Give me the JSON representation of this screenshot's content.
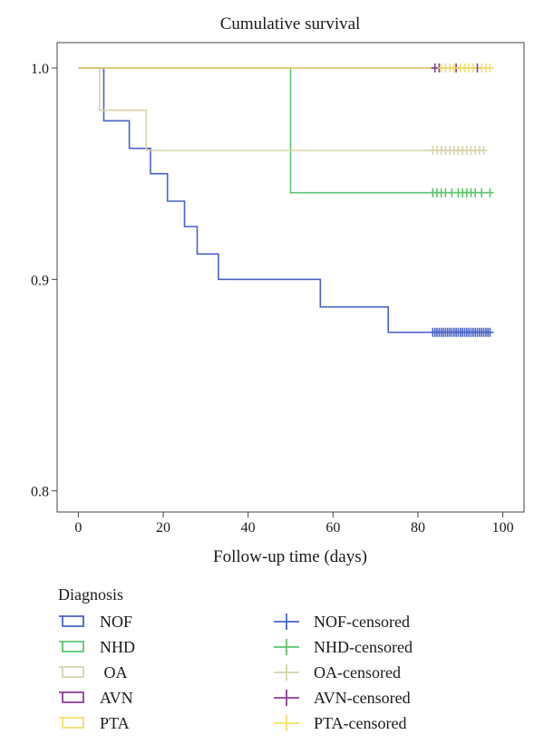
{
  "chart_data": {
    "type": "line",
    "title": "Cumulative survival",
    "xlabel": "Follow-up time (days)",
    "ylabel": "",
    "xlim": [
      -5,
      105
    ],
    "ylim": [
      0.79,
      1.012
    ],
    "x_ticks": [
      0,
      20,
      40,
      60,
      80,
      100
    ],
    "y_ticks": [
      0.8,
      0.9,
      1.0
    ],
    "y_tick_labels": [
      "0.8",
      "0.9",
      "1.0"
    ],
    "legend_title": "Diagnosis",
    "legend_placement": "bottom",
    "series": [
      {
        "name": "NOF",
        "color": "#4a62c8",
        "steps": [
          [
            0,
            1.0
          ],
          [
            6,
            0.975
          ],
          [
            12,
            0.962
          ],
          [
            17,
            0.95
          ],
          [
            21,
            0.937
          ],
          [
            25,
            0.925
          ],
          [
            28,
            0.912
          ],
          [
            33,
            0.9
          ],
          [
            57,
            0.887
          ],
          [
            73,
            0.875
          ],
          [
            97,
            0.875
          ]
        ],
        "censored_name": "NOF-censored",
        "censored": [
          83.5,
          84,
          84.5,
          85,
          85.5,
          86,
          86.5,
          87,
          87.5,
          88,
          88.5,
          89,
          89.5,
          90,
          90.5,
          91,
          91.5,
          92,
          92.5,
          93,
          93.5,
          94,
          94.5,
          95,
          95.5,
          96,
          96.5,
          97
        ]
      },
      {
        "name": "NHD",
        "color": "#5cc46e",
        "steps": [
          [
            0,
            1.0
          ],
          [
            50,
            0.941
          ],
          [
            97,
            0.941
          ]
        ],
        "censored_name": "NHD-censored",
        "censored": [
          83.5,
          84.5,
          85.5,
          86.5,
          88,
          89.5,
          90.5,
          91.5,
          92.5,
          93.5,
          95,
          97
        ]
      },
      {
        "name": "OA",
        "color": "#d8d3aa",
        "label": " OA",
        "steps": [
          [
            0,
            1.0
          ],
          [
            5,
            0.98
          ],
          [
            16,
            0.961
          ],
          [
            96,
            0.961
          ]
        ],
        "censored_name": "OA-censored",
        "censored": [
          83.5,
          84.5,
          85.5,
          86.5,
          87.5,
          88.5,
          89.5,
          90.5,
          91.5,
          92.5,
          93.5,
          94.5,
          95.5
        ]
      },
      {
        "name": "AVN",
        "color": "#8c3c96",
        "steps": [
          [
            0,
            1.0
          ],
          [
            94,
            1.0
          ]
        ],
        "censored_name": "AVN-censored",
        "censored": [
          84,
          85,
          89,
          94
        ]
      },
      {
        "name": "PTA",
        "color": "#f2df6a",
        "steps": [
          [
            0,
            1.0
          ],
          [
            97,
            1.0
          ]
        ],
        "censored_name": "PTA-censored",
        "censored": [
          85.5,
          86.5,
          87.5,
          88.5,
          90,
          91,
          92,
          93,
          95,
          96,
          97
        ]
      }
    ]
  }
}
